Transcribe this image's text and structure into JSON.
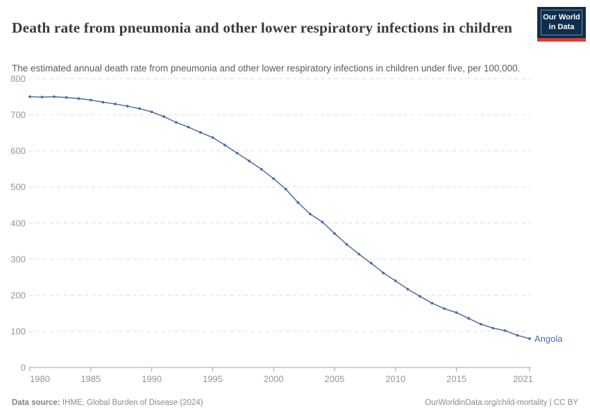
{
  "header": {
    "title": "Death rate from pneumonia and other lower respiratory infections in children",
    "subtitle": "The estimated annual death rate from pneumonia and other lower respiratory infections in children under five, per 100,000.",
    "logo": {
      "line1": "Our World",
      "line2": "in Data",
      "bg_color": "#0d2e4d",
      "bar_color": "#dc3c31"
    }
  },
  "chart_data": {
    "type": "line",
    "title": "Death rate from pneumonia and other lower respiratory infections in children",
    "subtitle": "The estimated annual death rate from pneumonia and other lower respiratory infections in children under five, per 100,000.",
    "xlabel": "",
    "ylabel": "",
    "xlim": [
      1980,
      2021
    ],
    "ylim": [
      0,
      800
    ],
    "xticks": [
      1980,
      1985,
      1990,
      1995,
      2000,
      2005,
      2010,
      2015,
      2021
    ],
    "yticks": [
      0,
      100,
      200,
      300,
      400,
      500,
      600,
      700,
      800
    ],
    "grid": "horizontal-dashed",
    "legend_position": "end-of-line-label",
    "x": [
      1980,
      1981,
      1982,
      1983,
      1984,
      1985,
      1986,
      1987,
      1988,
      1989,
      1990,
      1991,
      1992,
      1993,
      1994,
      1995,
      1996,
      1997,
      1998,
      1999,
      2000,
      2001,
      2002,
      2003,
      2004,
      2005,
      2006,
      2007,
      2008,
      2009,
      2010,
      2011,
      2012,
      2013,
      2014,
      2015,
      2016,
      2017,
      2018,
      2019,
      2020,
      2021
    ],
    "series": [
      {
        "name": "Angola",
        "color": "#4c6ca4",
        "values": [
          750,
          749,
          750,
          748,
          745,
          741,
          735,
          730,
          724,
          717,
          708,
          695,
          679,
          666,
          651,
          637,
          616,
          594,
          572,
          549,
          523,
          494,
          457,
          425,
          403,
          371,
          341,
          314,
          289,
          262,
          240,
          217,
          197,
          178,
          163,
          152,
          136,
          120,
          109,
          102,
          89,
          80
        ]
      }
    ],
    "colors": {
      "gridline": "#dedede",
      "axis": "#a3a3a3",
      "tick_text": "#969696"
    }
  },
  "footer": {
    "source_label": "Data source:",
    "source_value": " IHME, Global Burden of Disease (2024)",
    "credit": "OurWorldinData.org/child-mortality | CC BY"
  }
}
